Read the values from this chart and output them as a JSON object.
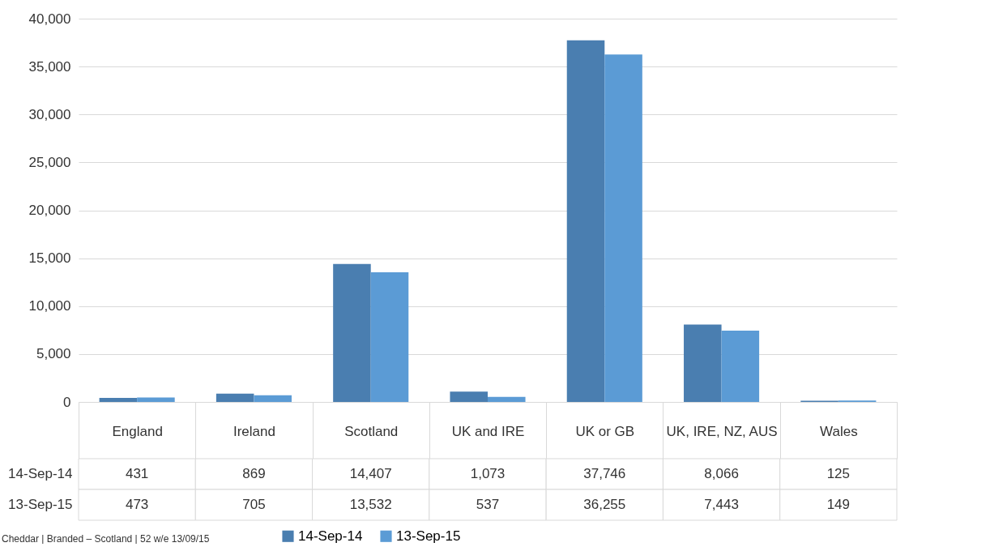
{
  "chart_data": {
    "type": "bar",
    "categories": [
      "England",
      "Ireland",
      "Scotland",
      "UK and IRE",
      "UK or GB",
      "UK, IRE, NZ, AUS",
      "Wales"
    ],
    "series": [
      {
        "name": "14-Sep-14",
        "color": "#4a7eb0",
        "values": [
          431,
          869,
          14407,
          1073,
          37746,
          8066,
          125
        ],
        "value_labels": [
          "431",
          "869",
          "14,407",
          "1,073",
          "37,746",
          "8,066",
          "125"
        ]
      },
      {
        "name": "13-Sep-15",
        "color": "#5b9bd5",
        "values": [
          473,
          705,
          13532,
          537,
          36255,
          7443,
          149
        ],
        "value_labels": [
          "473",
          "705",
          "13,532",
          "537",
          "36,255",
          "7,443",
          "149"
        ]
      }
    ],
    "ylim": [
      0,
      40000
    ],
    "yticks": [
      0,
      {
        "value": 5000,
        "label": "5,000"
      },
      {
        "value": 10000,
        "label": "10,000"
      },
      {
        "value": 15000,
        "label": "15,000"
      },
      {
        "value": 20000,
        "label": "20,000"
      },
      {
        "value": 25000,
        "label": "25,000"
      },
      {
        "value": 30000,
        "label": "30,000"
      },
      {
        "value": 35000,
        "label": "35,000"
      },
      {
        "value": 40000,
        "label": "40,000"
      }
    ],
    "grid": "y",
    "legend": "bottom",
    "annotations": [
      "Cheddar | Branded – Scotland | 52 w/e 13/09/15"
    ]
  }
}
